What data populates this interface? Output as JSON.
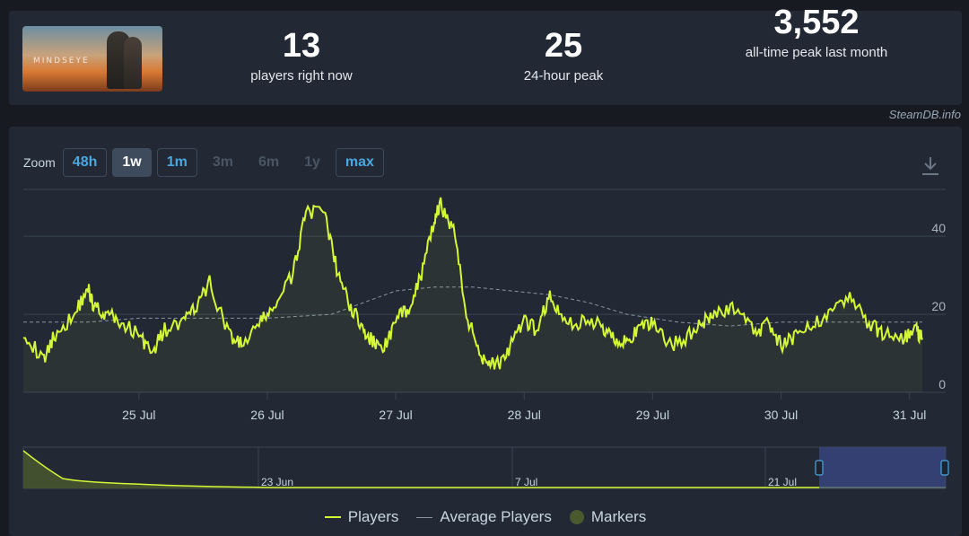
{
  "header": {
    "game": {
      "logo_text": "MINDSEYE"
    },
    "stats": [
      {
        "value": "13",
        "label": "players right now"
      },
      {
        "value": "25",
        "label": "24-hour peak"
      },
      {
        "value": "3,552",
        "label": "all-time peak last month"
      }
    ],
    "watermark": "SteamDB.info"
  },
  "zoom": {
    "label": "Zoom",
    "buttons": [
      {
        "label": "48h",
        "state": "link"
      },
      {
        "label": "1w",
        "state": "active"
      },
      {
        "label": "1m",
        "state": "link"
      },
      {
        "label": "3m",
        "state": "disabled"
      },
      {
        "label": "6m",
        "state": "disabled"
      },
      {
        "label": "1y",
        "state": "disabled"
      },
      {
        "label": "max",
        "state": "link"
      }
    ],
    "download_icon": "download-icon"
  },
  "colors": {
    "players": "#d4f736",
    "average": "#8a94a0",
    "markers": "#4b5a2e",
    "grid": "#3a4452",
    "panel": "#222935",
    "selection": "#3a4886"
  },
  "chart_data": {
    "type": "line",
    "title": "",
    "x_ticks": [
      "25 Jul",
      "26 Jul",
      "27 Jul",
      "28 Jul",
      "29 Jul",
      "30 Jul",
      "31 Jul"
    ],
    "y_ticks": [
      0,
      20,
      40
    ],
    "ylim": [
      0,
      52
    ],
    "x_range_days": [
      24.1,
      31.1
    ],
    "grid": true,
    "legend_position": "bottom",
    "series": [
      {
        "name": "Players",
        "x": [
          24.1,
          24.25,
          24.35,
          24.5,
          24.6,
          24.65,
          24.75,
          24.85,
          25.0,
          25.1,
          25.2,
          25.35,
          25.45,
          25.55,
          25.7,
          25.8,
          25.95,
          26.05,
          26.2,
          26.3,
          26.45,
          26.55,
          26.65,
          26.75,
          26.82,
          26.9,
          27.0,
          27.1,
          27.2,
          27.3,
          27.35,
          27.45,
          27.55,
          27.65,
          27.72,
          27.8,
          27.9,
          28.0,
          28.1,
          28.2,
          28.3,
          28.45,
          28.6,
          28.7,
          28.8,
          28.9,
          29.0,
          29.15,
          29.3,
          29.4,
          29.5,
          29.65,
          29.8,
          29.9,
          30.0,
          30.1,
          30.25,
          30.4,
          30.55,
          30.7,
          30.8,
          30.95,
          31.05,
          31.1
        ],
        "y": [
          16,
          8,
          15,
          20,
          27,
          22,
          20,
          18,
          15,
          10,
          16,
          18,
          22,
          28,
          15,
          12,
          18,
          22,
          30,
          47,
          45,
          30,
          22,
          16,
          13,
          11,
          18,
          22,
          30,
          44,
          48,
          42,
          20,
          10,
          8,
          7,
          12,
          18,
          16,
          25,
          18,
          18,
          17,
          14,
          13,
          16,
          18,
          12,
          15,
          18,
          20,
          22,
          15,
          18,
          12,
          14,
          17,
          22,
          24,
          17,
          15,
          14,
          16,
          14
        ]
      },
      {
        "name": "Average Players",
        "x": [
          24.1,
          24.6,
          25.0,
          25.5,
          26.0,
          26.5,
          26.75,
          27.0,
          27.3,
          27.6,
          27.9,
          28.2,
          28.5,
          28.8,
          29.2,
          29.6,
          30.0,
          30.5,
          31.1
        ],
        "y": [
          18,
          18,
          19,
          19,
          19,
          20,
          23,
          26,
          27,
          27,
          26,
          25,
          23,
          20,
          18,
          17,
          18,
          18,
          18
        ]
      }
    ],
    "navigator": {
      "x_ticks": [
        "23 Jun",
        "7 Jul",
        "21 Jul"
      ],
      "selection_label": "1w"
    }
  },
  "legend": {
    "items": [
      {
        "label": "Players",
        "kind": "line"
      },
      {
        "label": "Average Players",
        "kind": "line"
      },
      {
        "label": "Markers",
        "kind": "dot"
      }
    ]
  }
}
